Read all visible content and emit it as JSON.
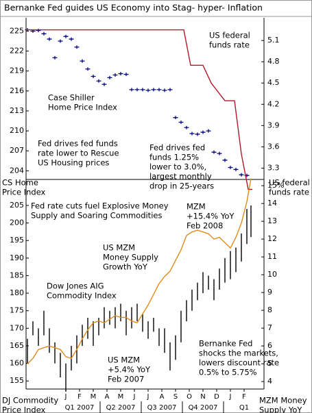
{
  "chart_data": [
    {
      "type": "combo",
      "title": "Bernanke Fed guides US Economy into Stag- hyper- Inflation",
      "xlim": [
        -1.9,
        15.45
      ],
      "ylim": [
        202.7,
        227
      ],
      "yticks": [
        204,
        207,
        210,
        213,
        216,
        219,
        222,
        225
      ],
      "y2lim": [
        3.14,
        5.42
      ],
      "y2ticks": [
        3.3,
        3.6,
        3.9,
        4.2,
        4.5,
        4.8,
        5.1
      ],
      "ylabel": [
        "CS Home",
        "Price Index"
      ],
      "y2label": [
        "US federal",
        "funds rate"
      ],
      "series": [
        {
          "style": "tick",
          "color": "#000080",
          "x": [
            -1.8,
            -1.4,
            -1.0,
            -0.6,
            -0.2,
            0.2,
            0.6,
            1.0,
            1.4,
            1.8,
            2.2,
            2.6,
            3.0,
            3.4,
            3.8,
            4.2,
            4.6,
            5.0,
            5.4,
            5.8,
            6.2,
            6.6,
            7.0,
            7.4,
            7.8,
            8.2,
            8.6,
            9.0,
            9.4,
            9.8,
            10.2,
            10.6,
            11.0,
            11.4,
            11.8,
            12.2,
            12.6,
            13.0,
            13.4,
            13.8,
            14.2
          ],
          "values": [
            225.2,
            225,
            225.1,
            224.6,
            223.8,
            221,
            223.5,
            224.2,
            223.8,
            222.6,
            220.5,
            219.3,
            218.2,
            217.5,
            217,
            218,
            218.4,
            218.6,
            218.5,
            216.2,
            216.2,
            216.2,
            216.1,
            216.2,
            216.2,
            216.1,
            216.2,
            212,
            211.3,
            210.5,
            209.6,
            209.5,
            209.8,
            210,
            206.8,
            206.6,
            205.6,
            204.5,
            204.2,
            203.4,
            203.3
          ]
        },
        {
          "style": "line",
          "color": "#b0182a",
          "axis": "y2",
          "x": [
            -1.9,
            9.6,
            10.1,
            11.0,
            11.6,
            12.6,
            13.3,
            13.8,
            14.3,
            14.6
          ],
          "values": [
            5.25,
            5.25,
            4.75,
            4.75,
            4.5,
            4.25,
            4.25,
            3.5,
            3.0,
            3.0
          ]
        }
      ],
      "annotations": [
        {
          "lines": [
            "US federal",
            "funds rate"
          ],
          "color": "#b0182a"
        },
        {
          "lines": [
            "Case Shiller",
            "Home Price Index"
          ],
          "color": "#000080"
        },
        {
          "lines": [
            "Fed drives fed funds",
            "rate lower to Rescue",
            "US Housing prices"
          ],
          "color": "#000000"
        },
        {
          "lines": [
            "Fed drives fed",
            "funds 1.25%",
            "lower to 3.0%,",
            "largest monthly",
            "drop in 25-years"
          ],
          "color": "#000000"
        }
      ]
    },
    {
      "type": "combo",
      "title": null,
      "xlim": [
        -1.9,
        15.45
      ],
      "ylim": [
        152.7,
        212.4
      ],
      "yticks": [
        155,
        160,
        165,
        170,
        175,
        180,
        185,
        190,
        195,
        200,
        205
      ],
      "y2lim": [
        3.58,
        15.35
      ],
      "y2ticks": [
        4,
        5,
        6,
        7,
        8,
        9,
        10,
        11,
        12,
        13,
        14,
        {
          "value": 15,
          "label": "15%"
        }
      ],
      "xticks": [
        {
          "value": 1,
          "label": "J"
        },
        {
          "value": 2,
          "label": "F"
        },
        {
          "value": 3,
          "label": "M"
        },
        {
          "value": 4,
          "label": "A"
        },
        {
          "value": 5,
          "label": "M"
        },
        {
          "value": 6,
          "label": "J"
        },
        {
          "value": 7,
          "label": "J"
        },
        {
          "value": 8,
          "label": "A"
        },
        {
          "value": 9,
          "label": "S"
        },
        {
          "value": 10,
          "label": "O"
        },
        {
          "value": 11,
          "label": "N"
        },
        {
          "value": 12,
          "label": "D"
        },
        {
          "value": 13,
          "label": "J"
        },
        {
          "value": 14,
          "label": "F"
        }
      ],
      "xgroups": [
        {
          "value": 2,
          "label": "Q1 2007"
        },
        {
          "value": 5,
          "label": "Q2 2007"
        },
        {
          "value": 8,
          "label": "Q3 2007"
        },
        {
          "value": 11,
          "label": "Q4 2007"
        },
        {
          "value": 14,
          "label": "Q1"
        }
      ],
      "ylabel": [
        "DJ Commodity",
        "Price Index"
      ],
      "y2label": [
        "MZM Money",
        "Supply YoY"
      ],
      "series": [
        {
          "style": "hilo",
          "color": "#000000",
          "x": [
            -1.8,
            -1.4,
            -1.0,
            -0.6,
            -0.2,
            0.2,
            0.6,
            1.0,
            1.4,
            1.8,
            2.2,
            2.6,
            3.0,
            3.4,
            3.8,
            4.2,
            4.6,
            5.0,
            5.4,
            5.8,
            6.2,
            6.6,
            7.0,
            7.4,
            7.8,
            8.2,
            8.6,
            9.0,
            9.4,
            9.8,
            10.2,
            10.6,
            11.0,
            11.4,
            11.8,
            12.2,
            12.6,
            13.0,
            13.4,
            13.8,
            14.2,
            14.5
          ],
          "high": [
            167,
            172,
            170,
            175,
            170,
            166,
            163,
            160,
            165,
            168,
            171,
            173,
            172,
            173,
            176,
            175,
            176,
            177,
            175,
            176,
            177,
            174,
            172,
            173,
            170,
            170,
            166,
            168,
            175,
            178,
            181,
            183,
            186,
            185,
            184,
            187,
            190,
            192,
            193,
            197,
            204,
            205
          ],
          "low": [
            160,
            168,
            165,
            168,
            163,
            160,
            156,
            152,
            158,
            160,
            165,
            167,
            165,
            168,
            170,
            171,
            170,
            172,
            168,
            170,
            172,
            169,
            167,
            169,
            165,
            163,
            158,
            161,
            166,
            172,
            175,
            178,
            180,
            181,
            178,
            181,
            183,
            184,
            186,
            189,
            194,
            196
          ]
        },
        {
          "style": "line",
          "color": "#e08a1e",
          "axis": "y2",
          "x": [
            -1.8,
            -1.4,
            -1.0,
            -0.6,
            -0.2,
            0.2,
            0.6,
            1.0,
            1.4,
            1.8,
            2.2,
            2.6,
            3.0,
            3.4,
            3.8,
            4.2,
            4.6,
            5.0,
            5.4,
            5.8,
            6.2,
            6.6,
            7.0,
            7.4,
            7.8,
            8.2,
            8.6,
            9.0,
            9.4,
            9.8,
            10.2,
            10.6,
            11.0,
            11.4,
            11.8,
            12.2,
            12.6,
            13.0,
            13.4,
            13.8,
            14.2,
            14.5
          ],
          "values": [
            5.0,
            5.3,
            5.8,
            5.9,
            6.0,
            5.9,
            5.8,
            5.4,
            5.3,
            5.8,
            6.4,
            6.9,
            7.3,
            7.4,
            7.3,
            7.5,
            7.7,
            7.6,
            7.6,
            7.4,
            7.3,
            7.8,
            8.3,
            8.9,
            9.5,
            9.9,
            10.2,
            10.8,
            11.4,
            12.2,
            12.4,
            12.5,
            12.4,
            12.3,
            12.0,
            12.1,
            11.8,
            11.5,
            12.1,
            12.9,
            14.1,
            15.4
          ]
        }
      ],
      "annotations": [
        {
          "lines": [
            "Fed rate cuts fuel Explosive Money",
            "Supply and Soaring Commodities"
          ],
          "color": "#000000"
        },
        {
          "lines": [
            "MZM",
            "+15.4% YoY",
            "Feb 2008"
          ],
          "color": "#000000"
        },
        {
          "lines": [
            "US MZM",
            "Money Supply",
            "Growth YoY"
          ],
          "color": "#e08a1e"
        },
        {
          "lines": [
            "Dow Jones AIG",
            "Commodity Index"
          ],
          "color": "#000000"
        },
        {
          "lines": [
            "US MZM",
            "+5.4% YoY",
            "Feb 2007"
          ],
          "color": "#000000"
        },
        {
          "lines": [
            "Bernanke Fed",
            "shocks the markets,",
            "lowers discount rate",
            "0.5% to 5.75%"
          ],
          "color": "#000000"
        }
      ]
    }
  ]
}
